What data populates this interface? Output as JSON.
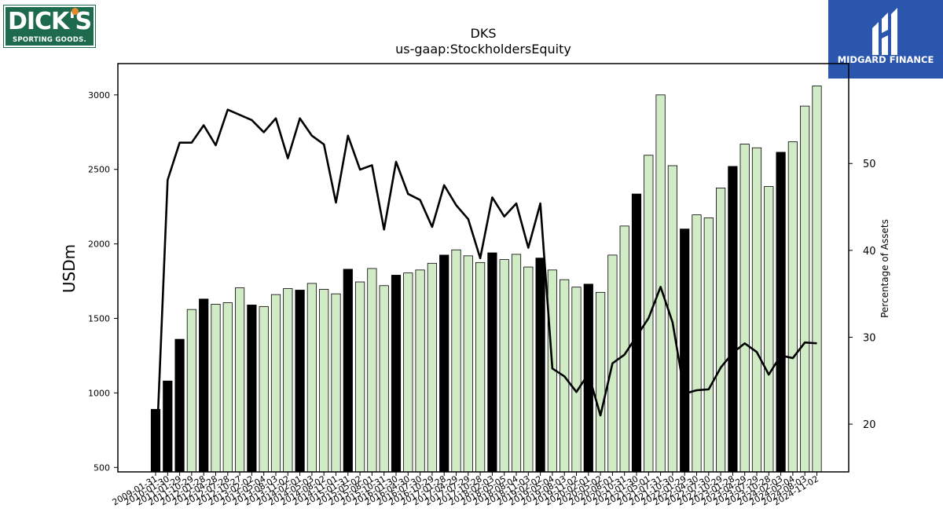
{
  "logos": {
    "left_line1": "DICK'S",
    "left_line2": "SPORTING GOODS.",
    "right_name": "MIDGARD FINANCE"
  },
  "chart_data": {
    "type": "bar",
    "title": "DKS",
    "subtitle": "us-gaap:StockholdersEquity",
    "ylabel": "USDm",
    "y2label": "Percentage of Assets",
    "ylim": [
      470,
      3210
    ],
    "y2lim": [
      14.5,
      61.5
    ],
    "yticks": [
      500,
      1000,
      1500,
      2000,
      2500,
      3000
    ],
    "y2ticks": [
      20,
      30,
      40,
      50
    ],
    "colors": {
      "annual": "#000000",
      "quarter": "#d1ebc7",
      "edge": "#000000",
      "line": "#000000"
    },
    "categories": [
      "2009-01-31",
      "2010-01-30",
      "2011-01-29",
      "2011-10-29",
      "2012-01-28",
      "2012-04-28",
      "2012-07-28",
      "2012-10-27",
      "2013-02-02",
      "2013-05-04",
      "2013-08-03",
      "2013-11-02",
      "2014-02-01",
      "2014-05-03",
      "2014-08-02",
      "2014-11-01",
      "2015-01-31",
      "2015-05-02",
      "2015-08-01",
      "2015-10-31",
      "2016-01-30",
      "2016-04-30",
      "2016-07-30",
      "2016-10-29",
      "2017-01-28",
      "2017-04-29",
      "2017-07-29",
      "2017-10-28",
      "2018-02-03",
      "2018-05-05",
      "2018-08-04",
      "2018-11-03",
      "2019-02-02",
      "2019-05-04",
      "2019-08-03",
      "2019-11-02",
      "2020-02-01",
      "2020-05-02",
      "2020-08-01",
      "2020-10-31",
      "2021-01-30",
      "2021-05-01",
      "2021-07-31",
      "2021-10-30",
      "2022-01-29",
      "2022-04-30",
      "2022-07-30",
      "2022-10-29",
      "2023-01-28",
      "2023-04-29",
      "2023-07-29",
      "2023-10-28",
      "2024-02-03",
      "2024-05-04",
      "2024-08-03",
      "2024-11-02"
    ],
    "tick_labels": [
      "2009-01-31",
      "2010-01-30",
      "2011-01-29",
      "2011-10-29",
      "2012-01-28",
      "2012-04-28",
      "2012-07-28",
      "2012-10-27",
      "2013-02-02",
      "2013-05-04",
      "2013-08-03",
      "2013-11-02",
      "2014-02-01",
      "2014-05-03",
      "2014-08-02",
      "2014-11-01",
      "2015-01-31",
      "2015-05-02",
      "2015-08-01",
      "2015-10-31",
      "2016-01-30",
      "2016-04-30",
      "2016-07-30",
      "2016-10-29",
      "2017-01-28",
      "2017-04-29",
      "2017-07-29",
      "2017-10-28",
      "2018-02-03",
      "2018-05-05",
      "2018-08-04",
      "2018-11-03",
      "2019-02-02",
      "2019-05-04",
      "2019-08-03",
      "2019-11-02",
      "2020-02-01",
      "2020-05-02",
      "2020-08-01",
      "2020-10-31",
      "2021-01-30",
      "2021-05-01",
      "2021-07-31",
      "2021-10-30",
      "2022-01-29",
      "2022-04-30",
      "2022-07-30",
      "2022-10-29",
      "2023-01-28",
      "2023-04-29",
      "2023-07-29",
      "2023-10-28",
      "2024-02-03",
      "2024-05-04",
      "2024-08-03",
      "2024-11-02"
    ],
    "series": [
      {
        "kind": "bar",
        "values": [
          890,
          1080,
          1360,
          1560,
          1630,
          1595,
          1605,
          1705,
          1590,
          1580,
          1660,
          1700,
          1690,
          1735,
          1695,
          1665,
          1830,
          1745,
          1835,
          1720,
          1790,
          1805,
          1825,
          1870,
          1925,
          1960,
          1920,
          1875,
          1940,
          1895,
          1930,
          1845,
          1905,
          1825,
          1760,
          1710,
          1730,
          1675,
          1925,
          2120,
          2335,
          2595,
          3000,
          2525,
          2100,
          2195,
          2175,
          2375,
          2520,
          2670,
          2645,
          2385,
          2615,
          2685,
          2925,
          3060
        ],
        "annual": [
          true,
          true,
          true,
          false,
          true,
          false,
          false,
          false,
          true,
          false,
          false,
          false,
          true,
          false,
          false,
          false,
          true,
          false,
          false,
          false,
          true,
          false,
          false,
          false,
          true,
          false,
          false,
          false,
          true,
          false,
          false,
          false,
          true,
          false,
          false,
          false,
          true,
          false,
          false,
          false,
          true,
          false,
          false,
          false,
          true,
          false,
          false,
          false,
          true,
          false,
          false,
          false,
          true,
          false,
          false,
          false
        ]
      },
      {
        "kind": "line",
        "axis": "right",
        "values": [
          14.5,
          48.1,
          52.4,
          52.4,
          54.4,
          52.1,
          56.2,
          55.6,
          55.0,
          53.6,
          55.2,
          50.6,
          55.2,
          53.2,
          52.2,
          45.5,
          53.2,
          49.3,
          49.8,
          42.4,
          50.2,
          46.5,
          45.8,
          42.7,
          47.5,
          45.2,
          43.6,
          39.1,
          46.1,
          43.9,
          45.4,
          40.3,
          45.4,
          26.4,
          25.5,
          23.7,
          25.8,
          21.0,
          27.0,
          28.0,
          30.1,
          32.2,
          35.8,
          31.7,
          23.5,
          23.9,
          24.0,
          26.5,
          28.2,
          29.3,
          28.3,
          25.7,
          27.9,
          27.6,
          29.4,
          29.3
        ]
      }
    ]
  }
}
